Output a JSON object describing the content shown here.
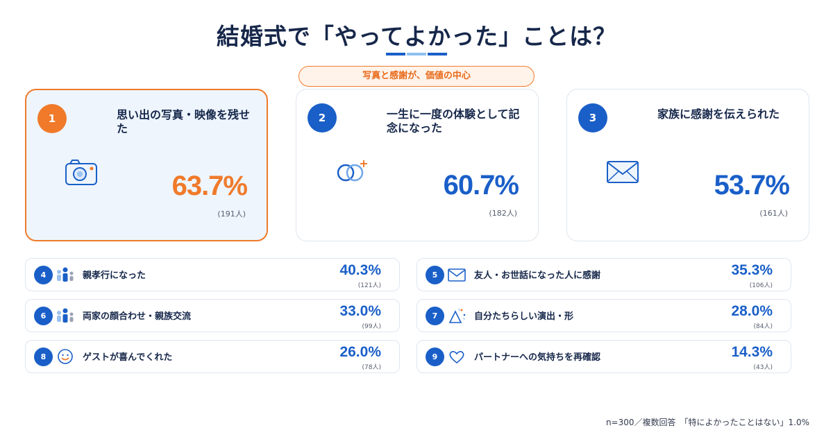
{
  "title": "結婚式で「やってよかった」ことは？",
  "banner": "写真と感謝が、価値の中心",
  "footnote": "n=300／複数回答　「特によかったことはない」1.0%",
  "colors": {
    "accent": "#f07a2a",
    "primary": "#1a5fc8",
    "text": "#16274a"
  },
  "chart_data": {
    "type": "bar",
    "unit": "%",
    "n": 300,
    "items": [
      {
        "rank": "1",
        "label": "思い出の写真・映像を残せた",
        "pct": "63.7%",
        "value": 63.7,
        "count": "(191人)",
        "icon": "camera-icon"
      },
      {
        "rank": "2",
        "label": "一生に一度の体験として記念になった",
        "pct": "60.7%",
        "value": 60.7,
        "count": "(182人)",
        "icon": "rings-icon"
      },
      {
        "rank": "3",
        "label": "家族に感謝を伝えられた",
        "pct": "53.7%",
        "value": 53.7,
        "count": "(161人)",
        "icon": "envelope-icon"
      },
      {
        "rank": "4",
        "label": "親孝行になった",
        "pct": "40.3%",
        "value": 40.3,
        "count": "(121人)",
        "icon": "family-icon"
      },
      {
        "rank": "5",
        "label": "友人・お世話になった人に感謝",
        "pct": "35.3%",
        "value": 35.3,
        "count": "(106人)",
        "icon": "envelope-icon"
      },
      {
        "rank": "6",
        "label": "両家の顔合わせ・親族交流",
        "pct": "33.0%",
        "value": 33.0,
        "count": "(99人)",
        "icon": "family-icon"
      },
      {
        "rank": "7",
        "label": "自分たちらしい演出・形",
        "pct": "28.0%",
        "value": 28.0,
        "count": "(84人)",
        "icon": "party-icon"
      },
      {
        "rank": "8",
        "label": "ゲストが喜んでくれた",
        "pct": "26.0%",
        "value": 26.0,
        "count": "(78人)",
        "icon": "smile-icon"
      },
      {
        "rank": "9",
        "label": "パートナーへの気持ちを再確認",
        "pct": "14.3%",
        "value": 14.3,
        "count": "(43人)",
        "icon": "heart-icon"
      }
    ]
  }
}
